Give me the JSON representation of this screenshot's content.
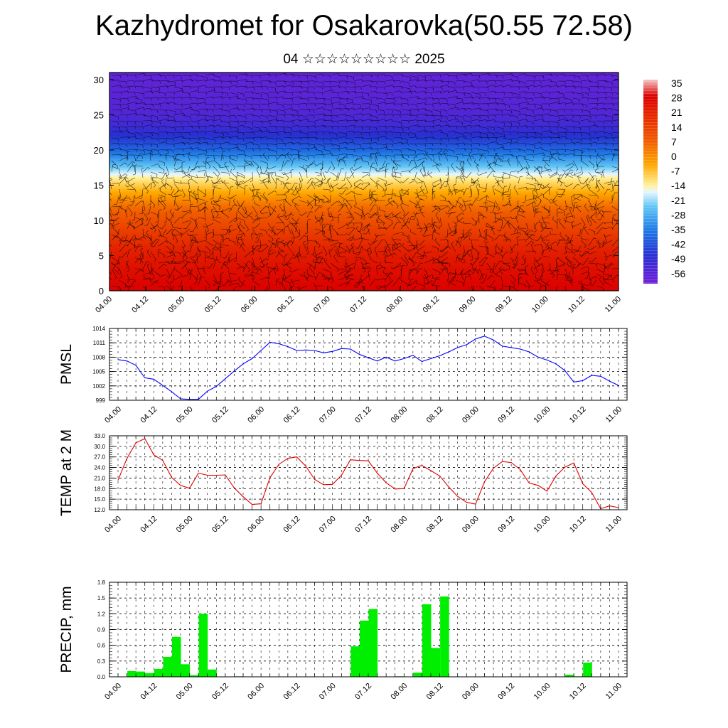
{
  "title": "Kazhydromet for Osakarovka(50.55 72.58)",
  "subtitle": "04 ☆☆☆☆☆☆☆☆☆ 2025",
  "x_tick_labels": [
    "04.00",
    "04.12",
    "05.00",
    "05.12",
    "06.00",
    "06.12",
    "07.00",
    "07.12",
    "08.00",
    "08.12",
    "09.00",
    "09.12",
    "10.00",
    "10.12",
    "11.00"
  ],
  "chart_data": [
    {
      "type": "heatmap",
      "title": "",
      "xlabel": "",
      "ylabel": "",
      "x": [
        "04.00",
        "04.12",
        "05.00",
        "05.12",
        "06.00",
        "06.12",
        "07.00",
        "07.12",
        "08.00",
        "08.12",
        "09.00",
        "09.12",
        "10.00",
        "10.12",
        "11.00"
      ],
      "ylim": [
        0,
        31
      ],
      "yticks": [
        0,
        5,
        10,
        15,
        20,
        25,
        30
      ],
      "colorbar_labels": [
        "35",
        "28",
        "21",
        "14",
        "7",
        "0",
        "-7",
        "-14",
        "-21",
        "-28",
        "-35",
        "-42",
        "-49",
        "-56"
      ],
      "colorbar_range": [
        -60,
        38
      ],
      "level_temperature": [
        [
          0,
          30
        ],
        [
          3,
          27
        ],
        [
          6,
          22
        ],
        [
          9,
          14
        ],
        [
          12,
          6
        ],
        [
          14,
          -3
        ],
        [
          16,
          -12
        ],
        [
          18,
          -25
        ],
        [
          20,
          -37
        ],
        [
          22,
          -46
        ],
        [
          24,
          -52
        ],
        [
          26,
          -55
        ],
        [
          28,
          -56
        ],
        [
          31,
          -57
        ]
      ],
      "overlay": "wind barbs",
      "colors": {
        "cold": "#6a1bd9",
        "mid": "#fff1a0",
        "warm": "#e80000"
      }
    },
    {
      "type": "line",
      "title": "",
      "xlabel": "",
      "ylabel": "PMSL",
      "ylim": [
        999,
        1014
      ],
      "yticks": [
        999,
        1002,
        1005,
        1008,
        1011,
        1014
      ],
      "x_step_hours": 3,
      "x_start": "04.00",
      "values": [
        1007.5,
        1007.2,
        1006.3,
        1003.7,
        1003.4,
        1002.1,
        1000.8,
        999.3,
        999.2,
        999.2,
        1000.9,
        1001.9,
        1003.5,
        1005.1,
        1006.6,
        1007.7,
        1009.4,
        1011.1,
        1010.8,
        1010.2,
        1009.4,
        1009.5,
        1009.4,
        1008.9,
        1009.2,
        1009.8,
        1009.7,
        1008.6,
        1007.9,
        1007.2,
        1008.0,
        1007.2,
        1007.7,
        1008.4,
        1007.1,
        1007.7,
        1008.3,
        1009.1,
        1010.0,
        1010.6,
        1011.8,
        1012.4,
        1011.6,
        1010.3,
        1010.0,
        1009.7,
        1009.1,
        1008.0,
        1007.4,
        1006.6,
        1005.2,
        1002.8,
        1003.1,
        1004.2,
        1004.0,
        1003.0,
        1002.1
      ],
      "colors": {
        "line": "#0000ff"
      }
    },
    {
      "type": "line",
      "title": "",
      "xlabel": "",
      "ylabel": "TEMP at 2 M",
      "ylim": [
        12,
        33
      ],
      "yticks": [
        12,
        15,
        18,
        21,
        24,
        27,
        30,
        33
      ],
      "x_step_hours": 3,
      "x_start": "04.00",
      "values": [
        20.4,
        26.6,
        31.0,
        32.2,
        27.6,
        26.0,
        21.2,
        18.9,
        18.1,
        22.4,
        21.8,
        21.8,
        21.9,
        18.2,
        15.7,
        13.5,
        13.7,
        21.1,
        24.9,
        26.6,
        27.0,
        24.4,
        20.6,
        19.1,
        19.2,
        21.8,
        26.2,
        26.0,
        25.9,
        22.4,
        19.7,
        17.9,
        18.0,
        23.7,
        24.6,
        23.1,
        21.6,
        18.5,
        15.8,
        14.1,
        13.6,
        19.9,
        23.8,
        25.7,
        25.4,
        23.4,
        19.6,
        18.9,
        17.3,
        21.6,
        24.1,
        25.3,
        19.4,
        16.9,
        12.3,
        13.1,
        12.6
      ],
      "colors": {
        "line": "#e00000"
      }
    },
    {
      "type": "bar",
      "title": "",
      "xlabel": "",
      "ylabel": "PRECIP, mm",
      "ylim": [
        0,
        1.8
      ],
      "yticks": [
        0.0,
        0.3,
        0.6,
        0.9,
        1.2,
        1.5,
        1.8
      ],
      "x_step_hours": 3,
      "x_start": "04.00",
      "values": [
        0,
        0.11,
        0.1,
        0.07,
        0.15,
        0.38,
        0.76,
        0.24,
        0.03,
        1.2,
        0.14,
        0,
        0,
        0.01,
        0,
        0,
        0,
        0,
        0,
        0,
        0,
        0,
        0,
        0,
        0,
        0,
        0.58,
        1.07,
        1.29,
        0,
        0,
        0.01,
        0,
        0.08,
        1.38,
        0.55,
        1.53,
        0,
        0,
        0,
        0,
        0,
        0,
        0,
        0,
        0,
        0,
        0,
        0,
        0,
        0.04,
        0.01,
        0.27,
        0,
        0,
        0
      ],
      "colors": {
        "bar": "#00ee00"
      }
    }
  ]
}
